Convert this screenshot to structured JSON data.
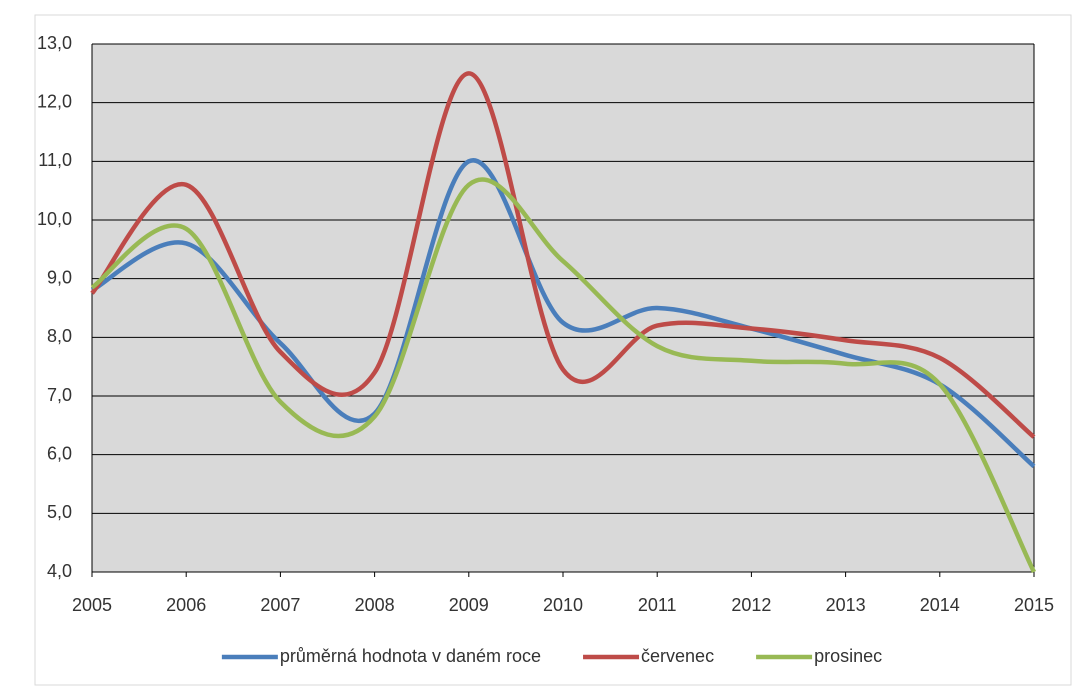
{
  "chart_data": {
    "type": "line",
    "x": [
      2005,
      2006,
      2007,
      2008,
      2009,
      2010,
      2011,
      2012,
      2013,
      2014,
      2015
    ],
    "xlim": [
      2005,
      2015
    ],
    "xticks": [
      2005,
      2006,
      2007,
      2008,
      2009,
      2010,
      2011,
      2012,
      2013,
      2014,
      2015
    ],
    "ylim": [
      4,
      13
    ],
    "yticks": [
      {
        "value": 4,
        "label": "4,0"
      },
      {
        "value": 5,
        "label": "5,0"
      },
      {
        "value": 6,
        "label": "6,0"
      },
      {
        "value": 7,
        "label": "7,0"
      },
      {
        "value": 8,
        "label": "8,0"
      },
      {
        "value": 9,
        "label": "9,0"
      },
      {
        "value": 10,
        "label": "10,0"
      },
      {
        "value": 11,
        "label": "11,0"
      },
      {
        "value": 12,
        "label": "12,0"
      },
      {
        "value": 13,
        "label": "13,0"
      }
    ],
    "grid": true,
    "smooth": true,
    "legend": "bottom",
    "series": [
      {
        "name": "průměrná hodnota v daném roce",
        "color": "#4a7ebb",
        "values": [
          8.8,
          9.6,
          7.9,
          6.7,
          11.0,
          8.25,
          8.5,
          8.15,
          7.7,
          7.2,
          5.8
        ]
      },
      {
        "name": "červenec",
        "color": "#be4b48",
        "values": [
          8.75,
          10.6,
          7.75,
          7.4,
          12.5,
          7.45,
          8.2,
          8.15,
          7.95,
          7.65,
          6.3
        ]
      },
      {
        "name": "prosinec",
        "color": "#98b954",
        "values": [
          8.85,
          9.85,
          6.9,
          6.65,
          10.6,
          9.3,
          7.85,
          7.6,
          7.55,
          7.2,
          4.0
        ]
      }
    ]
  }
}
